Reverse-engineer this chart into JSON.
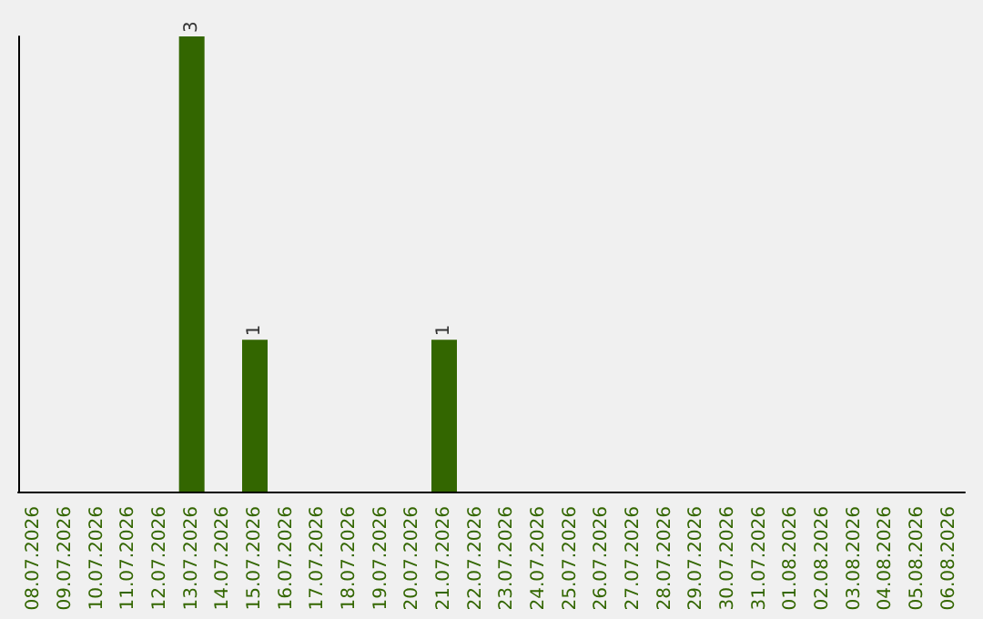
{
  "chart_data": {
    "type": "bar",
    "categories": [
      "08.07.2026",
      "09.07.2026",
      "10.07.2026",
      "11.07.2026",
      "12.07.2026",
      "13.07.2026",
      "14.07.2026",
      "15.07.2026",
      "16.07.2026",
      "17.07.2026",
      "18.07.2026",
      "19.07.2026",
      "20.07.2026",
      "21.07.2026",
      "22.07.2026",
      "23.07.2026",
      "24.07.2026",
      "25.07.2026",
      "26.07.2026",
      "27.07.2026",
      "28.07.2026",
      "29.07.2026",
      "30.07.2026",
      "31.07.2026",
      "01.08.2026",
      "02.08.2026",
      "03.08.2026",
      "04.08.2026",
      "05.08.2026",
      "06.08.2026"
    ],
    "values": [
      0,
      0,
      0,
      0,
      0,
      3,
      0,
      1,
      0,
      0,
      0,
      0,
      0,
      1,
      0,
      0,
      0,
      0,
      0,
      0,
      0,
      0,
      0,
      0,
      0,
      0,
      0,
      0,
      0,
      0
    ],
    "value_labels": [
      null,
      null,
      null,
      null,
      null,
      "3",
      null,
      "1",
      null,
      null,
      null,
      null,
      null,
      "1",
      null,
      null,
      null,
      null,
      null,
      null,
      null,
      null,
      null,
      null,
      null,
      null,
      null,
      null,
      null,
      null
    ],
    "color": "#336600",
    "tick_labels": "x"
  }
}
